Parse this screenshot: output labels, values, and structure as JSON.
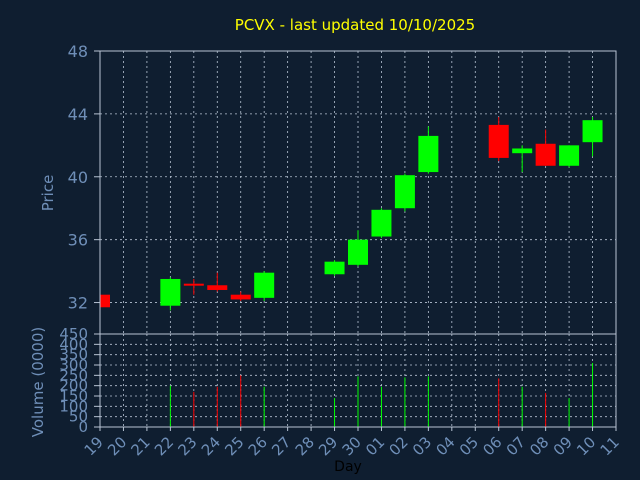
{
  "chart_data": {
    "type": "candlestick",
    "title": "PCVX - last updated 10/10/2025",
    "xlabel": "Day",
    "ylabel": "Price",
    "volume_label": "Volume (0000)",
    "grid": true,
    "colors": {
      "background": "#0f1e30",
      "up": "#00ff00",
      "down": "#ff0000",
      "axis_text": "#6f8fb8",
      "title": "#ffff00",
      "grid": "#b8c4d4"
    },
    "price_ylim": [
      30,
      48
    ],
    "price_ticks": [
      "32",
      "36",
      "40",
      "44",
      "48"
    ],
    "volume_ylim": [
      0,
      450
    ],
    "volume_ticks": [
      "0",
      "50",
      "100",
      "150",
      "200",
      "250",
      "300",
      "350",
      "400",
      "450"
    ],
    "x_ticks": [
      "19",
      "20",
      "21",
      "22",
      "23",
      "24",
      "25",
      "26",
      "27",
      "28",
      "29",
      "30",
      "01",
      "02",
      "03",
      "04",
      "05",
      "06",
      "07",
      "08",
      "09",
      "10",
      "11"
    ],
    "candles": [
      {
        "day": "19",
        "open": 32.5,
        "high": 32.6,
        "low": 31.7,
        "close": 31.7,
        "volume": 0
      },
      {
        "day": "22",
        "open": 31.8,
        "high": 33.6,
        "low": 31.5,
        "close": 33.5,
        "volume": 200
      },
      {
        "day": "23",
        "open": 33.2,
        "high": 33.5,
        "low": 32.5,
        "close": 33.1,
        "volume": 170
      },
      {
        "day": "24",
        "open": 33.1,
        "high": 33.9,
        "low": 32.7,
        "close": 32.8,
        "volume": 195
      },
      {
        "day": "25",
        "open": 32.5,
        "high": 32.7,
        "low": 32.1,
        "close": 32.2,
        "volume": 250
      },
      {
        "day": "26",
        "open": 32.3,
        "high": 34.0,
        "low": 32.1,
        "close": 33.9,
        "volume": 195
      },
      {
        "day": "29",
        "open": 33.8,
        "high": 34.7,
        "low": 33.7,
        "close": 34.6,
        "volume": 140
      },
      {
        "day": "30",
        "open": 34.4,
        "high": 36.6,
        "low": 34.3,
        "close": 36.0,
        "volume": 245
      },
      {
        "day": "01",
        "open": 36.2,
        "high": 38.0,
        "low": 36.1,
        "close": 37.9,
        "volume": 195
      },
      {
        "day": "02",
        "open": 38.0,
        "high": 40.2,
        "low": 37.8,
        "close": 40.1,
        "volume": 240
      },
      {
        "day": "03",
        "open": 40.3,
        "high": 43.2,
        "low": 40.2,
        "close": 42.6,
        "volume": 245
      },
      {
        "day": "06",
        "open": 43.3,
        "high": 43.8,
        "low": 41.0,
        "close": 41.2,
        "volume": 235
      },
      {
        "day": "07",
        "open": 41.5,
        "high": 42.0,
        "low": 40.3,
        "close": 41.8,
        "volume": 195
      },
      {
        "day": "08",
        "open": 42.1,
        "high": 43.0,
        "low": 40.7,
        "close": 40.7,
        "volume": 165
      },
      {
        "day": "09",
        "open": 40.7,
        "high": 42.0,
        "low": 40.6,
        "close": 42.0,
        "volume": 140
      },
      {
        "day": "10",
        "open": 42.2,
        "high": 43.8,
        "low": 41.3,
        "close": 43.6,
        "volume": 310
      }
    ]
  }
}
